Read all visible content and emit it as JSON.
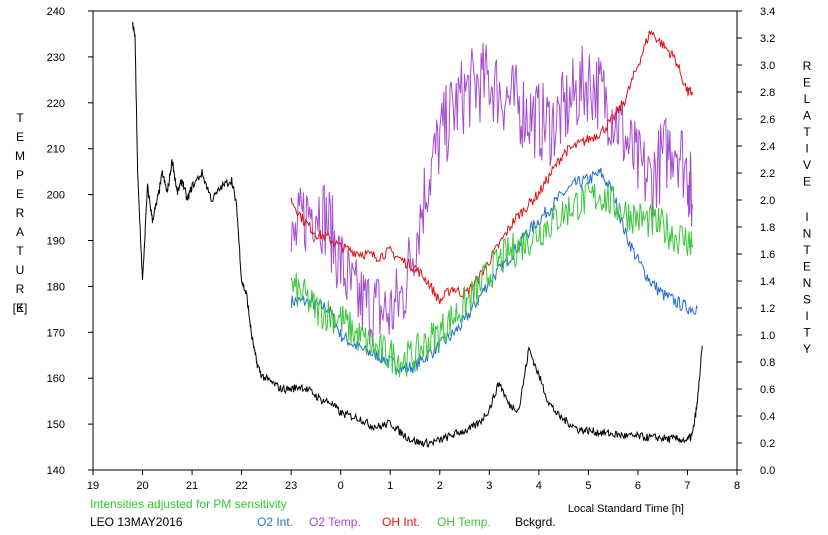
{
  "chart_data": {
    "type": "line",
    "title": "",
    "xlabel": "Local Standard Time [h]",
    "ylabel_left_letters": [
      "T",
      "E",
      "M",
      "P",
      "E",
      "R",
      "A",
      "T",
      "U",
      "R",
      "E"
    ],
    "ylabel_left_unit": "[K]",
    "ylabel_right_letters": [
      "R",
      "E",
      "L",
      "A",
      "T",
      "I",
      "V",
      "E",
      "I",
      "N",
      "T",
      "E",
      "N",
      "S",
      "I",
      "T",
      "Y"
    ],
    "xlim": [
      19,
      32
    ],
    "ylim_left": [
      140,
      240
    ],
    "ylim_right": [
      0,
      3.4
    ],
    "x_ticks": [
      19,
      20,
      21,
      22,
      23,
      24,
      25,
      26,
      27,
      28,
      29,
      30,
      31,
      32
    ],
    "x_tick_labels": [
      "19",
      "20",
      "21",
      "22",
      "23",
      "0",
      "1",
      "2",
      "3",
      "4",
      "5",
      "6",
      "7",
      "8"
    ],
    "y_left_ticks": [
      140,
      150,
      160,
      170,
      180,
      190,
      200,
      210,
      220,
      230,
      240
    ],
    "y_left_tick_labels": [
      "140",
      "150",
      "160",
      "170",
      "180",
      "190",
      "200",
      "210",
      "220",
      "230",
      "240"
    ],
    "y_right_ticks": [
      0,
      0.2,
      0.4,
      0.6,
      0.8,
      1.0,
      1.2,
      1.4,
      1.6,
      1.8,
      2.0,
      2.2,
      2.4,
      2.6,
      2.8,
      3.0,
      3.2,
      3.4
    ],
    "y_right_tick_labels": [
      "0.0",
      "0.2",
      "0.4",
      "0.6",
      "0.8",
      "1.0",
      "1.2",
      "1.4",
      "1.6",
      "1.8",
      "2.0",
      "2.2",
      "2.4",
      "2.6",
      "2.8",
      "3.0",
      "3.2",
      "3.4"
    ],
    "note": "Intensities adjusted for PM sensitivity",
    "station_date": "LEO 13MAY2016",
    "legend_placement": "bottom",
    "grid": false,
    "series": [
      {
        "name": "O2 Int.",
        "axis": "right",
        "color": "#1f6fd6",
        "x": [
          23.0,
          23.25,
          23.5,
          23.75,
          24.0,
          24.25,
          24.5,
          24.75,
          25.0,
          25.25,
          25.5,
          25.75,
          26.0,
          26.25,
          26.5,
          26.75,
          27.0,
          27.25,
          27.5,
          27.75,
          28.0,
          28.25,
          28.5,
          28.75,
          29.0,
          29.25,
          29.5,
          29.75,
          30.0,
          30.25,
          30.5,
          30.75,
          31.0,
          31.2
        ],
        "y": [
          1.25,
          1.25,
          1.22,
          1.2,
          1.0,
          0.93,
          0.88,
          0.85,
          0.8,
          0.75,
          0.77,
          0.85,
          0.92,
          1.0,
          1.1,
          1.25,
          1.4,
          1.5,
          1.62,
          1.75,
          1.85,
          1.95,
          2.05,
          2.12,
          2.15,
          2.2,
          2.05,
          1.75,
          1.55,
          1.4,
          1.3,
          1.25,
          1.2,
          1.2
        ]
      },
      {
        "name": "O2 Temp.",
        "axis": "left",
        "color": "#a64ccf",
        "x": [
          23.0,
          23.25,
          23.5,
          23.75,
          24.0,
          24.25,
          24.5,
          24.75,
          25.0,
          25.25,
          25.5,
          25.75,
          26.0,
          26.25,
          26.5,
          26.75,
          27.0,
          27.25,
          27.5,
          27.75,
          28.0,
          28.25,
          28.5,
          28.75,
          29.0,
          29.25,
          29.5,
          29.75,
          30.0,
          30.25,
          30.5,
          30.75,
          31.0,
          31.1
        ],
        "y": [
          188,
          195,
          198,
          194,
          185,
          178,
          176,
          175,
          174,
          178,
          190,
          203,
          212,
          218,
          222,
          224,
          225,
          222,
          220,
          218,
          216,
          215,
          218,
          222,
          225,
          222,
          218,
          212,
          206,
          203,
          208,
          212,
          205,
          198
        ]
      },
      {
        "name": "OH Int.",
        "axis": "right",
        "color": "#e01414",
        "x": [
          23.0,
          23.25,
          23.5,
          23.75,
          24.0,
          24.25,
          24.5,
          24.75,
          25.0,
          25.25,
          25.5,
          25.75,
          26.0,
          26.25,
          26.5,
          26.75,
          27.0,
          27.25,
          27.5,
          27.75,
          28.0,
          28.25,
          28.5,
          28.75,
          29.0,
          29.25,
          29.5,
          29.75,
          30.0,
          30.25,
          30.5,
          30.75,
          31.0,
          31.1
        ],
        "y": [
          2.0,
          1.85,
          1.75,
          1.72,
          1.65,
          1.62,
          1.6,
          1.58,
          1.62,
          1.55,
          1.5,
          1.4,
          1.25,
          1.35,
          1.3,
          1.4,
          1.55,
          1.7,
          1.85,
          1.95,
          2.05,
          2.2,
          2.35,
          2.4,
          2.45,
          2.5,
          2.6,
          2.75,
          3.0,
          3.25,
          3.15,
          3.05,
          2.8,
          2.8
        ]
      },
      {
        "name": "OH Temp.",
        "axis": "left",
        "color": "#3cc83c",
        "x": [
          23.0,
          23.25,
          23.5,
          23.75,
          24.0,
          24.25,
          24.5,
          24.75,
          25.0,
          25.25,
          25.5,
          25.75,
          26.0,
          26.25,
          26.5,
          26.75,
          27.0,
          27.25,
          27.5,
          27.75,
          28.0,
          28.25,
          28.5,
          28.75,
          29.0,
          29.25,
          29.5,
          29.75,
          30.0,
          30.25,
          30.5,
          30.75,
          31.0,
          31.1
        ],
        "y": [
          180,
          178,
          175,
          174,
          173,
          170,
          168,
          166,
          165,
          164,
          165,
          168,
          170,
          173,
          176,
          179,
          183,
          186,
          188,
          190,
          192,
          194,
          196,
          198,
          199,
          200,
          198,
          196,
          195,
          194,
          193,
          191,
          190,
          189
        ]
      },
      {
        "name": "Bckgrd.",
        "axis": "right",
        "color": "#000000",
        "x": [
          19.8,
          19.85,
          19.9,
          20.0,
          20.1,
          20.2,
          20.3,
          20.4,
          20.5,
          20.6,
          20.7,
          20.8,
          20.9,
          21.0,
          21.2,
          21.4,
          21.6,
          21.8,
          21.9,
          22.0,
          22.1,
          22.2,
          22.3,
          22.4,
          22.6,
          22.8,
          23.0,
          23.2,
          23.4,
          23.6,
          23.8,
          24.0,
          24.2,
          24.4,
          24.6,
          24.8,
          25.0,
          25.2,
          25.4,
          25.6,
          25.8,
          26.0,
          26.2,
          26.4,
          26.6,
          26.8,
          27.0,
          27.2,
          27.4,
          27.6,
          27.8,
          28.0,
          28.2,
          28.4,
          28.6,
          28.8,
          29.0,
          29.2,
          29.4,
          29.6,
          29.8,
          30.0,
          30.2,
          30.4,
          30.6,
          30.8,
          31.0,
          31.1,
          31.2,
          31.3
        ],
        "y": [
          3.3,
          3.2,
          2.2,
          1.4,
          2.1,
          1.85,
          2.0,
          2.2,
          2.05,
          2.3,
          2.05,
          2.15,
          2.0,
          2.1,
          2.2,
          2.0,
          2.1,
          2.15,
          1.95,
          1.4,
          1.3,
          1.0,
          0.8,
          0.7,
          0.65,
          0.6,
          0.6,
          0.62,
          0.58,
          0.52,
          0.5,
          0.42,
          0.4,
          0.38,
          0.33,
          0.32,
          0.35,
          0.28,
          0.23,
          0.2,
          0.2,
          0.22,
          0.25,
          0.28,
          0.3,
          0.35,
          0.45,
          0.65,
          0.48,
          0.45,
          0.9,
          0.7,
          0.5,
          0.4,
          0.35,
          0.3,
          0.29,
          0.28,
          0.27,
          0.26,
          0.25,
          0.25,
          0.24,
          0.24,
          0.23,
          0.23,
          0.22,
          0.26,
          0.5,
          0.92
        ]
      }
    ]
  }
}
